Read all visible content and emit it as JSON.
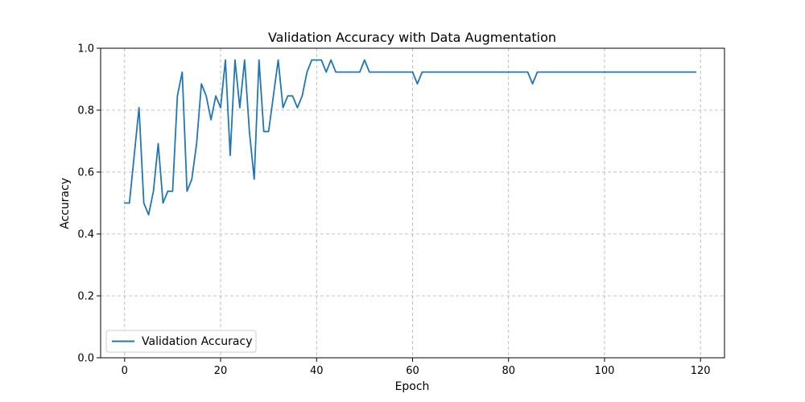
{
  "chart_data": {
    "type": "line",
    "title": "Validation Accuracy with Data Augmentation",
    "xlabel": "Epoch",
    "ylabel": "Accuracy",
    "xlim": [
      -5,
      125
    ],
    "ylim": [
      0.0,
      1.0
    ],
    "x_ticks": [
      0,
      20,
      40,
      60,
      80,
      100,
      120
    ],
    "y_ticks": [
      "0.0",
      "0.2",
      "0.4",
      "0.6",
      "0.8",
      "1.0"
    ],
    "grid": true,
    "legend_position": "lower-left",
    "series": [
      {
        "name": "Validation Accuracy",
        "color": "#1f77b4",
        "x": [
          0,
          1,
          2,
          3,
          4,
          5,
          6,
          7,
          8,
          9,
          10,
          11,
          12,
          13,
          14,
          15,
          16,
          17,
          18,
          19,
          20,
          21,
          22,
          23,
          24,
          25,
          26,
          27,
          28,
          29,
          30,
          31,
          32,
          33,
          34,
          35,
          36,
          37,
          38,
          39,
          40,
          41,
          42,
          43,
          44,
          45,
          46,
          47,
          48,
          49,
          50,
          51,
          52,
          53,
          54,
          55,
          56,
          57,
          58,
          59,
          60,
          61,
          62,
          63,
          64,
          65,
          66,
          67,
          68,
          69,
          70,
          71,
          72,
          73,
          74,
          75,
          76,
          77,
          78,
          79,
          80,
          81,
          82,
          83,
          84,
          85,
          86,
          87,
          88,
          89,
          90,
          91,
          92,
          93,
          94,
          95,
          96,
          97,
          98,
          99,
          100,
          101,
          102,
          103,
          104,
          105,
          106,
          107,
          108,
          109,
          110,
          111,
          112,
          113,
          114,
          115,
          116,
          117,
          118,
          119
        ],
        "values": [
          0.5,
          0.5,
          0.654,
          0.808,
          0.5,
          0.462,
          0.538,
          0.692,
          0.5,
          0.538,
          0.538,
          0.846,
          0.923,
          0.538,
          0.577,
          0.692,
          0.885,
          0.846,
          0.769,
          0.846,
          0.808,
          0.962,
          0.654,
          0.962,
          0.808,
          0.962,
          0.731,
          0.577,
          0.962,
          0.731,
          0.731,
          0.846,
          0.962,
          0.808,
          0.846,
          0.846,
          0.808,
          0.846,
          0.923,
          0.962,
          0.962,
          0.962,
          0.923,
          0.962,
          0.923,
          0.923,
          0.923,
          0.923,
          0.923,
          0.923,
          0.962,
          0.923,
          0.923,
          0.923,
          0.923,
          0.923,
          0.923,
          0.923,
          0.923,
          0.923,
          0.923,
          0.885,
          0.923,
          0.923,
          0.923,
          0.923,
          0.923,
          0.923,
          0.923,
          0.923,
          0.923,
          0.923,
          0.923,
          0.923,
          0.923,
          0.923,
          0.923,
          0.923,
          0.923,
          0.923,
          0.923,
          0.923,
          0.923,
          0.923,
          0.923,
          0.885,
          0.923,
          0.923,
          0.923,
          0.923,
          0.923,
          0.923,
          0.923,
          0.923,
          0.923,
          0.923,
          0.923,
          0.923,
          0.923,
          0.923,
          0.923,
          0.923,
          0.923,
          0.923,
          0.923,
          0.923,
          0.923,
          0.923,
          0.923,
          0.923,
          0.923,
          0.923,
          0.923,
          0.923,
          0.923,
          0.923,
          0.923,
          0.923,
          0.923,
          0.923
        ]
      }
    ]
  }
}
